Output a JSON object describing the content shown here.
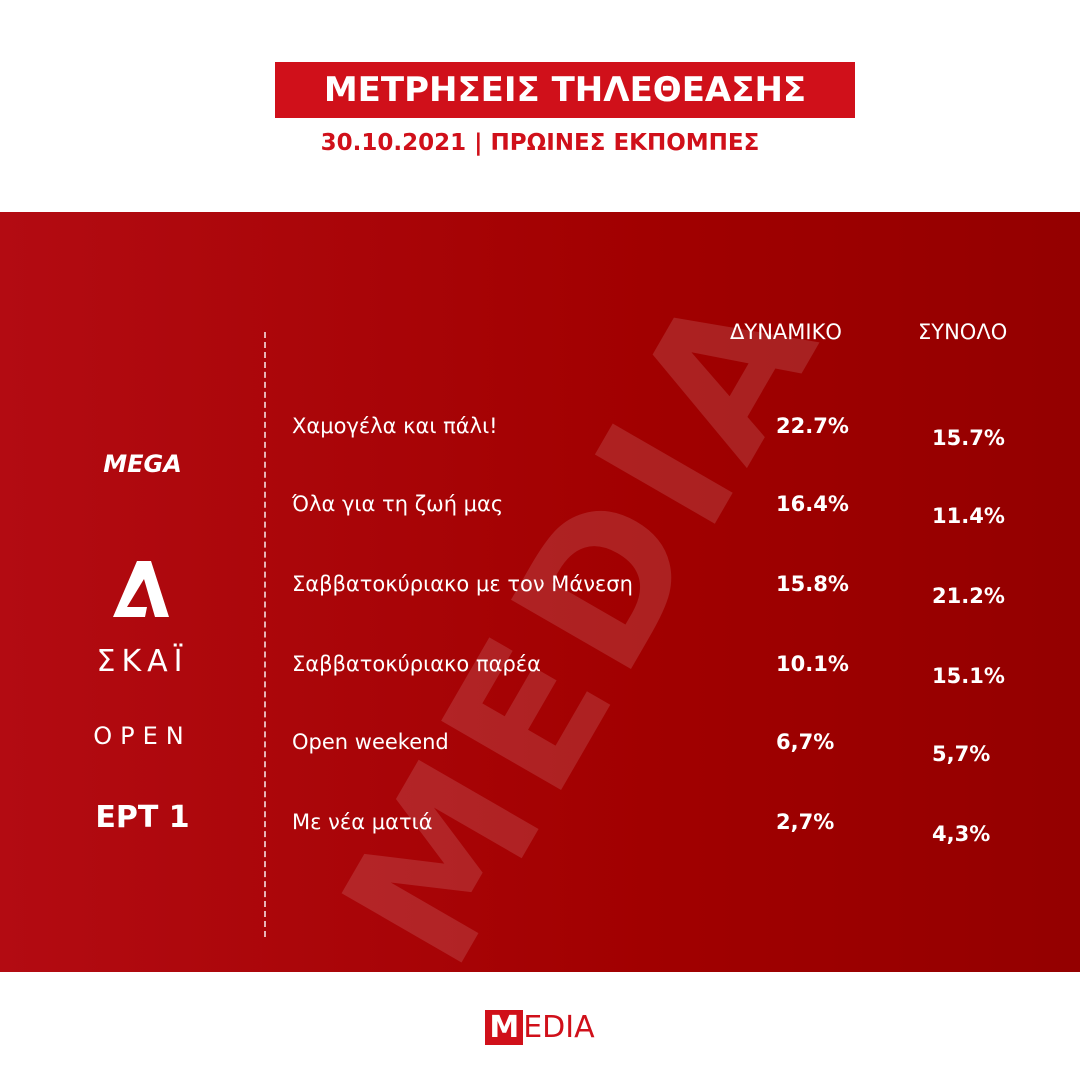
{
  "header": {
    "title": "ΜΕΤΡΗΣΕΙΣ ΤΗΛΕΘΕΑΣΗΣ",
    "subtitle": "30.10.2021 | ΠΡΩΙΝΕΣ ΕΚΠΟΜΠΕΣ"
  },
  "table": {
    "columns": [
      "ΔΥΝΑΜΙΚΟ",
      "ΣΥΝΟΛΟ"
    ],
    "rows": [
      [
        "Χαμογέλα και πάλι!",
        "22.7%",
        "15.7%"
      ],
      [
        "Όλα για τη ζωή μας",
        "16.4%",
        "11.4%"
      ],
      [
        "Σαββατοκύριακο με τον Μάνεση",
        "15.8%",
        "21.2%"
      ],
      [
        "Σαββατοκύριακο παρέα",
        "10.1%",
        "15.1%"
      ],
      [
        "Open weekend",
        "6,7%",
        "5,7%"
      ],
      [
        "Με νέα ματιά",
        "2,7%",
        "4,3%"
      ]
    ]
  },
  "channels": [
    "MEGA",
    "ΣΚΑΪ",
    "OPEN",
    "ΕΡΤ 1"
  ],
  "watermark": "MEDIA",
  "footer": {
    "logo_initial": "M",
    "logo_rest": "EDIA"
  }
}
